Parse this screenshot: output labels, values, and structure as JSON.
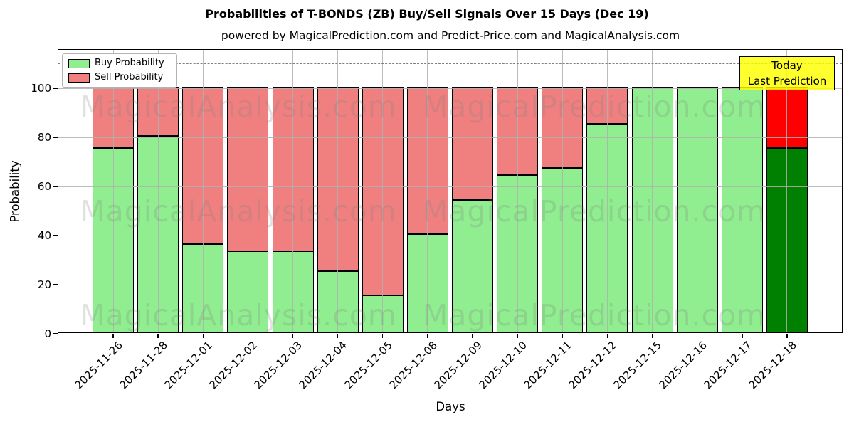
{
  "figure": {
    "title": "Probabilities of T-BONDS (ZB) Buy/Sell Signals Over 15 Days (Dec 19)",
    "subtitle": "powered by MagicalPrediction.com and Predict-Price.com and MagicalAnalysis.com"
  },
  "chart_data": {
    "type": "bar",
    "stacked": true,
    "title": "Probabilities of T-BONDS (ZB) Buy/Sell Signals Over 15 Days (Dec 19)",
    "subtitle": "powered by MagicalPrediction.com and Predict-Price.com and MagicalAnalysis.com",
    "xlabel": "Days",
    "ylabel": "Probability",
    "categories": [
      "2025-11-26",
      "2025-11-28",
      "2025-12-01",
      "2025-12-02",
      "2025-12-03",
      "2025-12-04",
      "2025-12-05",
      "2025-12-08",
      "2025-12-09",
      "2025-12-10",
      "2025-12-11",
      "2025-12-12",
      "2025-12-15",
      "2025-12-16",
      "2025-12-17",
      "2025-12-18"
    ],
    "series": [
      {
        "name": "Buy Probability",
        "color": "#90ee90",
        "values": [
          75,
          80,
          36,
          33,
          33,
          25,
          15,
          40,
          54,
          64,
          67,
          85,
          100,
          100,
          100,
          75
        ]
      },
      {
        "name": "Sell Probability",
        "color": "#f08080",
        "values": [
          25,
          20,
          64,
          67,
          67,
          75,
          85,
          60,
          46,
          36,
          33,
          15,
          0,
          0,
          0,
          25
        ]
      }
    ],
    "today_bar": {
      "index": 15,
      "buy_color": "#008000",
      "sell_color": "#ff0000"
    },
    "bar_edge_color": "#000000",
    "yticks": [
      0,
      20,
      40,
      60,
      80,
      100
    ],
    "ylim": [
      0,
      115.65
    ],
    "dashed_line_y": 110,
    "grid": true,
    "legend_position": "upper-left"
  },
  "annotation": {
    "lines": [
      "Today",
      "Last Prediction"
    ],
    "bg_color": "#ffff00"
  },
  "watermarks": {
    "left": "MagicalAnalysis.com",
    "right": "MagicalPrediction.com"
  }
}
